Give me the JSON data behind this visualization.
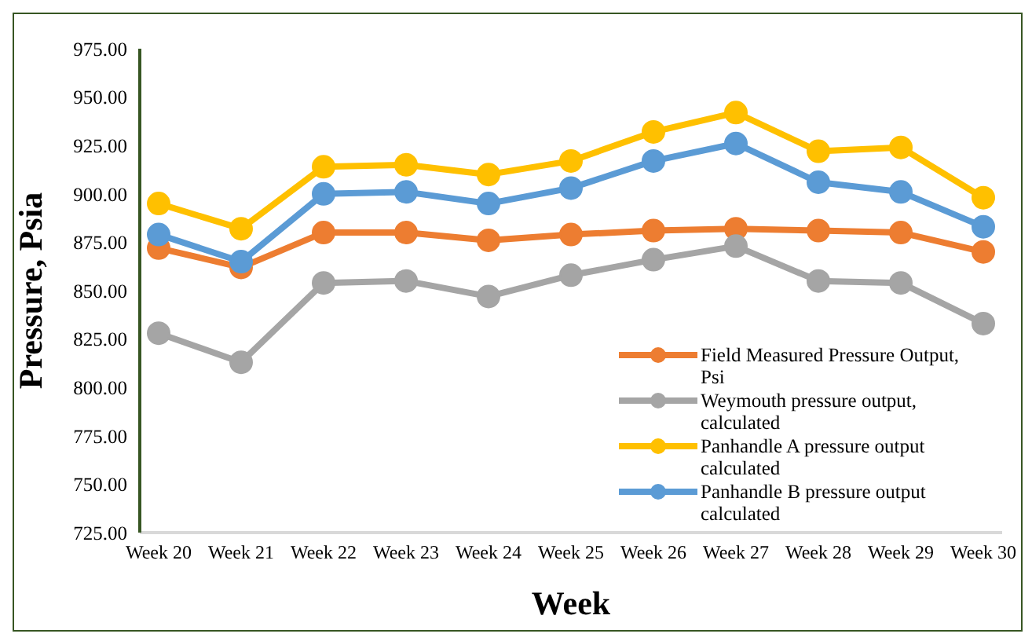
{
  "chart_data": {
    "type": "line",
    "xlabel": "Week",
    "ylabel": "Pressure, Psia",
    "categories": [
      "Week 20",
      "Week 21",
      "Week 22",
      "Week 23",
      "Week 24",
      "Week 25",
      "Week 26",
      "Week 27",
      "Week 28",
      "Week 29",
      "Week 30"
    ],
    "series": [
      {
        "name": "Field Measured Pressure Output, Psi",
        "color": "#ed7d31",
        "values": [
          872,
          862,
          880,
          880,
          876,
          879,
          881,
          882,
          881,
          880,
          870
        ]
      },
      {
        "name": "Weymouth pressure output, calculated",
        "color": "#a5a5a5",
        "values": [
          828,
          813,
          854,
          855,
          847,
          858,
          866,
          873,
          855,
          854,
          833
        ]
      },
      {
        "name": "Panhandle A pressure output calculated",
        "color": "#ffc000",
        "values": [
          895,
          882,
          914,
          915,
          910,
          917,
          932,
          942,
          922,
          924,
          898
        ]
      },
      {
        "name": "Panhandle B pressure output calculated",
        "color": "#5b9bd5",
        "values": [
          879,
          865,
          900,
          901,
          895,
          903,
          917,
          926,
          906,
          901,
          883
        ]
      }
    ],
    "ylim": [
      725,
      975
    ],
    "yticks": [
      {
        "value": 725,
        "label": "725.00"
      },
      {
        "value": 750,
        "label": "750.00"
      },
      {
        "value": 775,
        "label": "775.00"
      },
      {
        "value": 800,
        "label": "800.00"
      },
      {
        "value": 825,
        "label": "825.00"
      },
      {
        "value": 850,
        "label": "850.00"
      },
      {
        "value": 875,
        "label": "875.00"
      },
      {
        "value": 900,
        "label": "900.00"
      },
      {
        "value": 925,
        "label": "925.00"
      },
      {
        "value": 950,
        "label": "950.00"
      },
      {
        "value": 975,
        "label": "975.00"
      }
    ],
    "grid": false,
    "legend": "bottom right",
    "marker": "circle",
    "line_style": "solid"
  }
}
